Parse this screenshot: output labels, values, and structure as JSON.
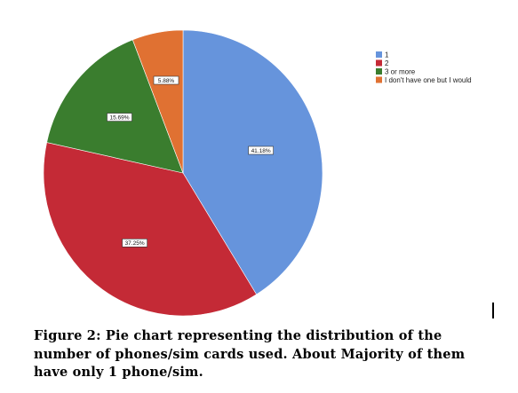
{
  "chart_data": {
    "type": "pie",
    "categories": [
      "1",
      "2",
      "3 or more",
      "I don't have one but I would"
    ],
    "values": [
      41.18,
      37.25,
      15.69,
      5.88
    ],
    "labels": [
      "41.18%",
      "37.25%",
      "15.69%",
      "5.88%"
    ],
    "colors": [
      "#6694DC",
      "#C42A36",
      "#3A7D2E",
      "#E07132"
    ],
    "start_angle_deg": 0,
    "direction": "clockwise",
    "legend_position": "top-right"
  },
  "caption": {
    "text": "Figure 2: Pie chart representing the distribution of the number of phones/sim cards used. About Majority of them have only 1 phone/sim."
  }
}
